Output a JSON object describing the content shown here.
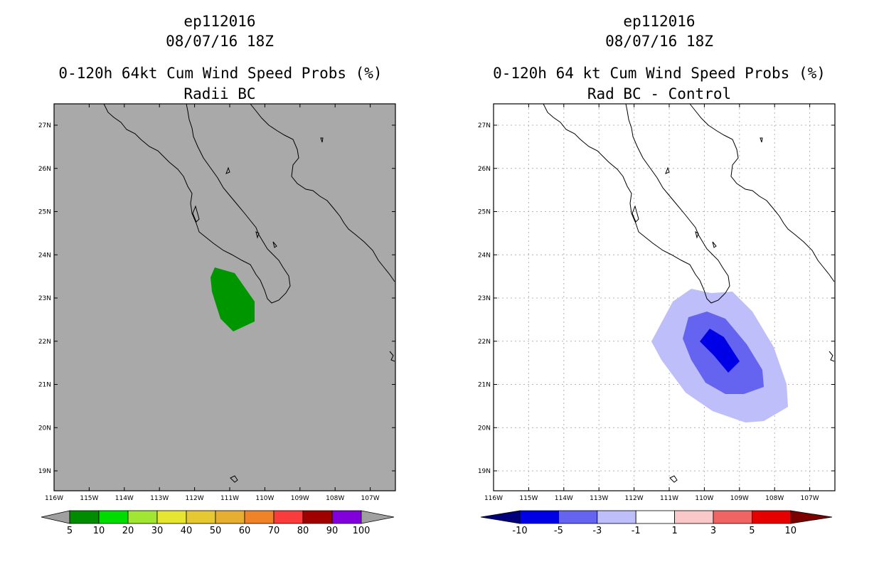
{
  "panels": [
    {
      "storm_id": "ep112016",
      "date": "08/07/16 18Z",
      "title": "0-120h 64kt Cum Wind Speed Probs (%)",
      "subtitle": "Radii BC",
      "lat_labels": [
        "27N",
        "26N",
        "25N",
        "24N",
        "23N",
        "22N",
        "21N",
        "20N",
        "19N"
      ],
      "lon_labels": [
        "116W",
        "115W",
        "114W",
        "113W",
        "112W",
        "111W",
        "110W",
        "109W",
        "108W",
        "107W"
      ],
      "colorbar": {
        "labels": [
          "5",
          "10",
          "20",
          "30",
          "40",
          "50",
          "60",
          "70",
          "80",
          "90",
          "100"
        ],
        "colors": [
          "#008c00",
          "#00dc00",
          "#a0e632",
          "#e6e632",
          "#e6c832",
          "#e6af32",
          "#f08228",
          "#fa3c3c",
          "#a00000",
          "#8200dc"
        ],
        "left_arrow_color": "#a0a0a0",
        "right_arrow_color": "#a0a0a0"
      }
    },
    {
      "storm_id": "ep112016",
      "date": "08/07/16 18Z",
      "title": "0-120h 64 kt Cum Wind Speed Probs (%)",
      "subtitle": "Rad BC - Control",
      "lat_labels": [
        "27N",
        "26N",
        "25N",
        "24N",
        "23N",
        "22N",
        "21N",
        "20N",
        "19N"
      ],
      "lon_labels": [
        "116W",
        "115W",
        "114W",
        "113W",
        "112W",
        "111W",
        "110W",
        "109W",
        "108W",
        "107W"
      ],
      "colorbar": {
        "labels": [
          "-10",
          "-5",
          "-3",
          "-1",
          "1",
          "3",
          "5",
          "10"
        ],
        "colors": [
          "#0000e6",
          "#6464f0",
          "#bebefa",
          "#ffffff",
          "#fac8c8",
          "#f06464",
          "#e60000"
        ],
        "left_arrow_color": "#00007d",
        "right_arrow_color": "#7d0000"
      }
    }
  ],
  "map_colors": {
    "left_background": "#a9a9a9",
    "right_background": "#ffffff",
    "prob_fill": "#009600",
    "diff_light": "#bebefa",
    "diff_medium": "#6464f0",
    "diff_dark": "#0000e6"
  }
}
